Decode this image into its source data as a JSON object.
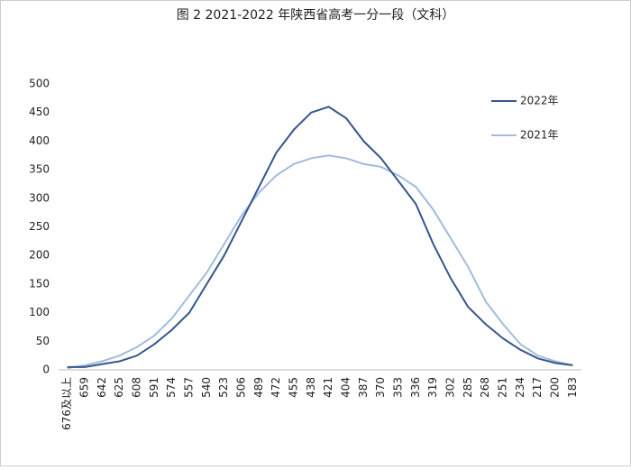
{
  "chart_data": {
    "type": "line",
    "title": "图 2 2021-2022 年陕西省高考一分一段（文科）",
    "categories": [
      "676及以上",
      "659",
      "642",
      "625",
      "608",
      "591",
      "574",
      "557",
      "540",
      "523",
      "506",
      "489",
      "472",
      "455",
      "438",
      "421",
      "404",
      "387",
      "370",
      "353",
      "336",
      "319",
      "302",
      "285",
      "268",
      "251",
      "234",
      "217",
      "200",
      "183"
    ],
    "series": [
      {
        "name": "2022年",
        "color": "#34568b",
        "values": [
          5,
          5,
          10,
          15,
          25,
          45,
          70,
          100,
          150,
          200,
          260,
          320,
          380,
          420,
          450,
          460,
          440,
          400,
          370,
          330,
          290,
          220,
          160,
          110,
          80,
          55,
          35,
          20,
          12,
          8
        ]
      },
      {
        "name": "2021年",
        "color": "#a3bbdc",
        "values": [
          3,
          8,
          15,
          25,
          40,
          60,
          90,
          130,
          170,
          220,
          270,
          310,
          340,
          360,
          370,
          375,
          370,
          360,
          355,
          340,
          320,
          280,
          230,
          180,
          120,
          80,
          45,
          25,
          15,
          8
        ]
      }
    ],
    "ylim": [
      0,
      500
    ],
    "yticks": [
      0,
      50,
      100,
      150,
      200,
      250,
      300,
      350,
      400,
      450,
      500
    ],
    "grid": false,
    "legend": "upper right"
  }
}
